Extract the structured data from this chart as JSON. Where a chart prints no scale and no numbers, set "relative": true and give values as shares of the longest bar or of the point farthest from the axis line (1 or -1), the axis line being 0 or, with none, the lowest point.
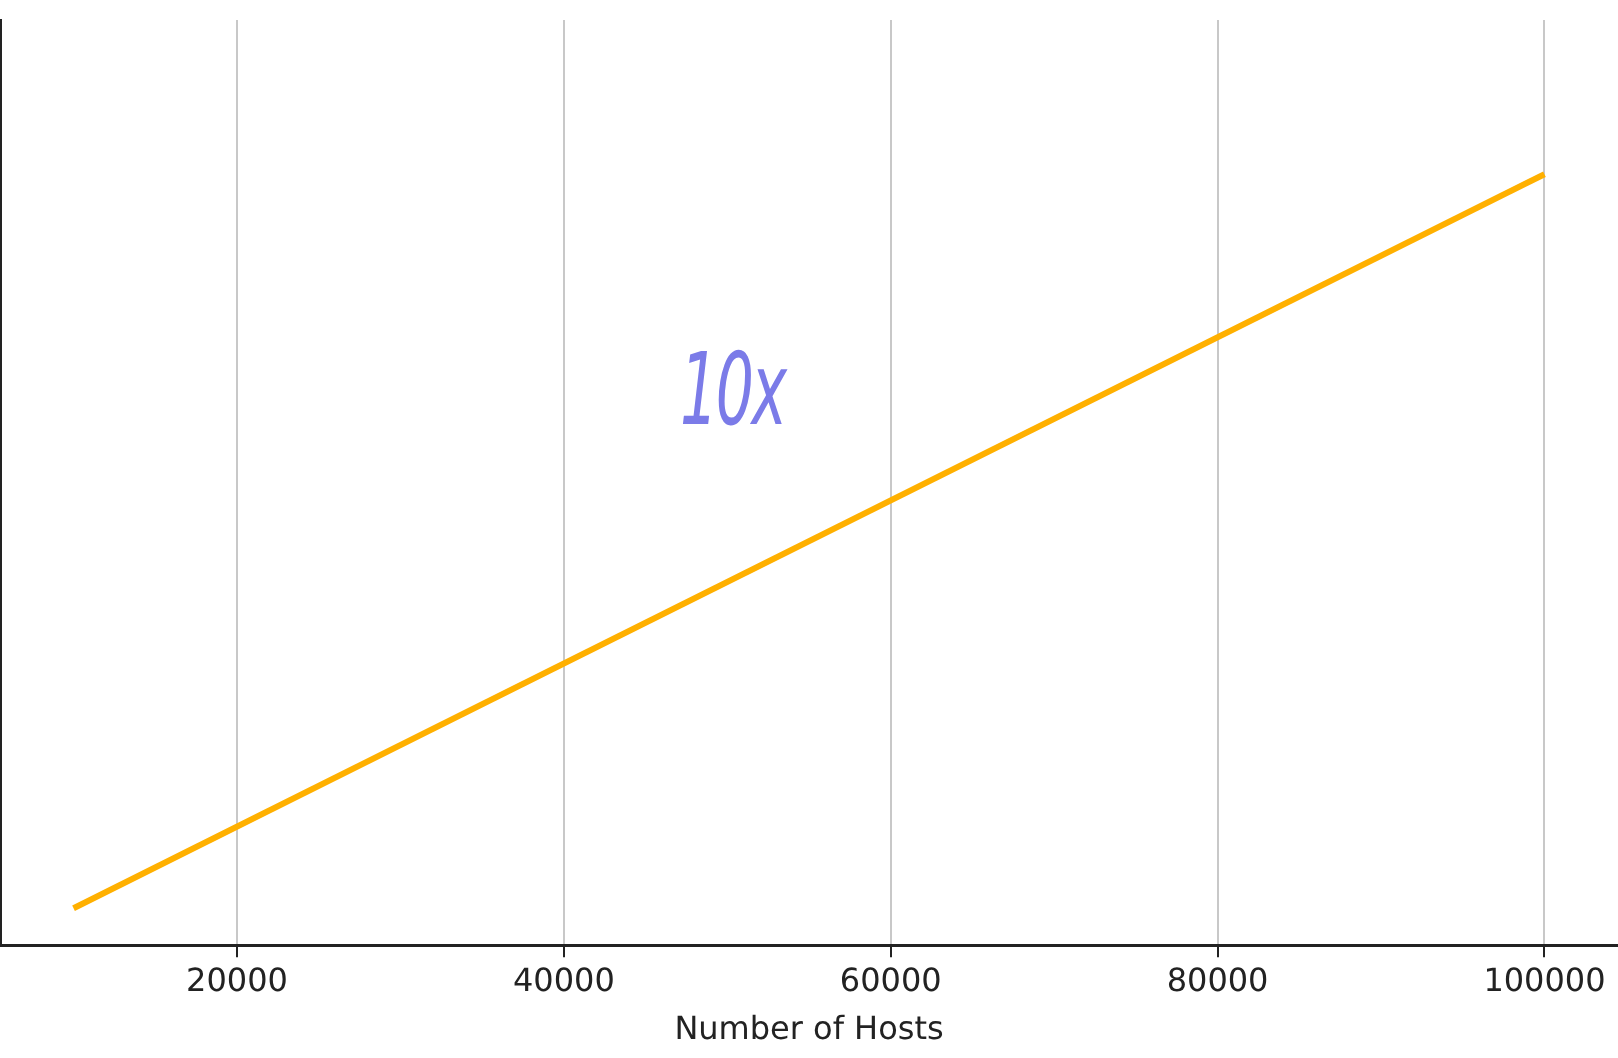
{
  "chart_data": {
    "type": "line",
    "relative": true,
    "xlabel": "Number of Hosts",
    "x": [
      10000,
      100000
    ],
    "series": [
      {
        "color": "#ffb000",
        "values": [
          0.048,
          1
        ]
      }
    ],
    "xlim": [
      5500,
      104500
    ],
    "xticks": [
      20000,
      40000,
      60000,
      80000,
      100000
    ],
    "grid": "x",
    "legend": false,
    "marker": "none",
    "line_style": "solid",
    "annotations": [
      "10x"
    ]
  }
}
